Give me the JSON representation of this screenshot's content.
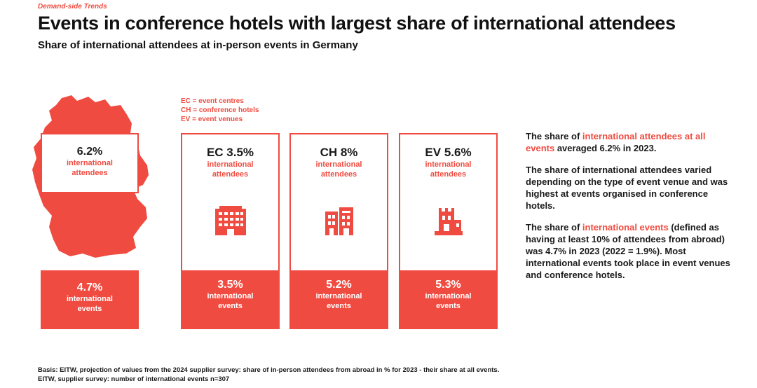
{
  "header": {
    "kicker": "Demand-side Trends",
    "title": "Events in conference hotels with largest share of international attendees",
    "subtitle": "Share of international attendees at in-person events in Germany"
  },
  "colors": {
    "accent": "#f04b40",
    "text": "#1a1a1a"
  },
  "germany": {
    "attendees_value": "6.2%",
    "attendees_label1": "international",
    "attendees_label2": "attendees",
    "events_value": "4.7%",
    "events_label1": "international",
    "events_label2": "events"
  },
  "legend": {
    "ec": "EC = event centres",
    "ch": "CH = conference hotels",
    "ev": "EV = event venues"
  },
  "venues": [
    {
      "head": "EC 3.5%",
      "label1": "international",
      "label2": "attendees",
      "icon": "office-building-icon",
      "events_value": "3.5%",
      "events_label1": "international",
      "events_label2": "events"
    },
    {
      "head": "CH 8%",
      "label1": "international",
      "label2": "attendees",
      "icon": "hotel-building-icon",
      "events_value": "5.2%",
      "events_label1": "international",
      "events_label2": "events"
    },
    {
      "head": "EV 5.6%",
      "label1": "international",
      "label2": "attendees",
      "icon": "castle-venue-icon",
      "events_value": "5.3%",
      "events_label1": "international",
      "events_label2": "events"
    }
  ],
  "text": {
    "p1_a": "The share of ",
    "p1_hl": "international attendees at all events",
    "p1_b": " averaged 6.2% in 2023.",
    "p2": "The share of international attendees varied depending on the type of event venue and was highest at events organised in conference hotels.",
    "p3_a": "The share of ",
    "p3_hl": "international events",
    "p3_b": " (defined as having at least 10% of attendees from abroad) was 4.7% in 2023 (2022 = 1.9%). Most international events took place in event venues and conference hotels."
  },
  "footer": "Basis: EITW, projection of values from the 2024 supplier survey: share of in-person attendees from abroad in % for 2023 - their share at all events. EITW, supplier survey: number of international events n=307"
}
